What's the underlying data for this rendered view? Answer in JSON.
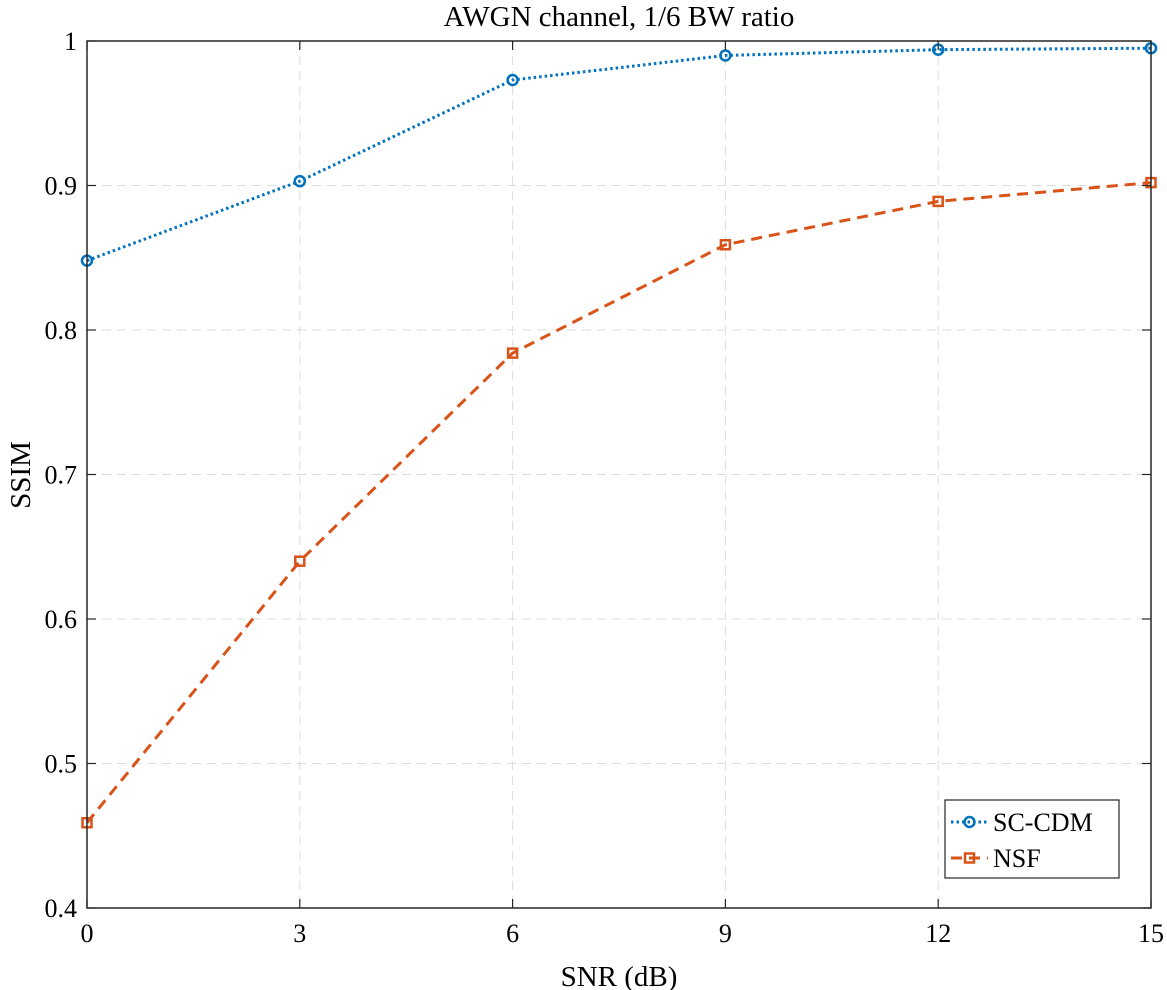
{
  "chart_data": {
    "type": "line",
    "title": "AWGN channel, 1/6 BW ratio",
    "xlabel": "SNR (dB)",
    "ylabel": "SSIM",
    "x": [
      0,
      3,
      6,
      9,
      12,
      15
    ],
    "xlim": [
      0,
      15
    ],
    "ylim": [
      0.4,
      1
    ],
    "xticks": [
      0,
      3,
      6,
      9,
      12,
      15
    ],
    "xtick_labels": [
      "0",
      "3",
      "6",
      "9",
      "12",
      "15"
    ],
    "yticks": [
      0.4,
      0.5,
      0.6,
      0.7,
      0.8,
      0.9,
      1
    ],
    "ytick_labels": [
      "0.4",
      "0.5",
      "0.6",
      "0.7",
      "0.8",
      "0.9",
      "1"
    ],
    "grid": true,
    "legend_position": "bottom-right",
    "series": [
      {
        "name": "SC-CDM",
        "values": [
          0.848,
          0.903,
          0.973,
          0.99,
          0.994,
          0.995
        ],
        "color": "#0072BD",
        "line_style": "dotted",
        "marker": "circle"
      },
      {
        "name": "NSF",
        "values": [
          0.459,
          0.64,
          0.784,
          0.859,
          0.889,
          0.902
        ],
        "color": "#D95319",
        "line_style": "dashed",
        "marker": "square"
      }
    ]
  }
}
